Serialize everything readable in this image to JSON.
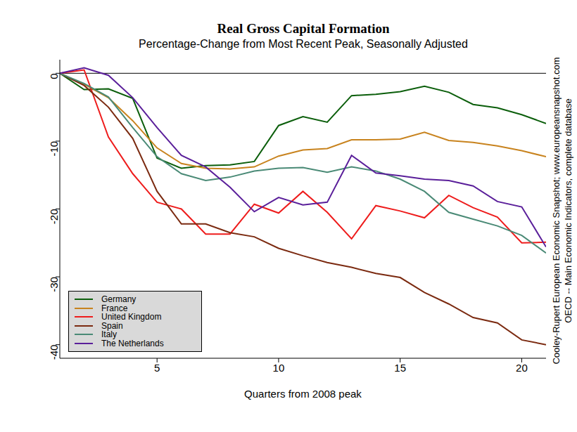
{
  "chart_data": {
    "type": "line",
    "title": "Real Gross Capital Formation",
    "subtitle": "Percentage-Change from Most Recent Peak, Seasonally Adjusted",
    "x_label": "Quarters from 2008 peak",
    "annotations": [
      "Cooley-Rupert European Economic Snapshot; www.europeansnapshot.com",
      "OECD -- Main Economic Indicators, complete database"
    ],
    "x": [
      1,
      2,
      3,
      4,
      5,
      6,
      7,
      8,
      9,
      10,
      11,
      12,
      13,
      14,
      15,
      16,
      17,
      18,
      19,
      20,
      21
    ],
    "series": [
      {
        "name": "Germany",
        "color": "#0b5e0b",
        "values": [
          0,
          -2.4,
          -2.3,
          -3.7,
          -12.5,
          -14,
          -13.6,
          -13.5,
          -13,
          -7.7,
          -6.4,
          -7.2,
          -3.3,
          -3.1,
          -2.7,
          -1.9,
          -2.8,
          -4.6,
          -5.1,
          -6.1,
          -7.4
        ]
      },
      {
        "name": "France",
        "color": "#c8831e",
        "values": [
          0,
          -1.6,
          -3.6,
          -7,
          -11,
          -13.3,
          -14,
          -14.1,
          -13.8,
          -12.2,
          -11.3,
          -11.1,
          -9.8,
          -9.8,
          -9.7,
          -8.7,
          -9.9,
          -10.2,
          -10.7,
          -11.4,
          -12.3
        ]
      },
      {
        "name": "United Kingdom",
        "color": "#ee1c1c",
        "values": [
          0,
          0.5,
          -9.4,
          -14.8,
          -19,
          -20,
          -23.7,
          -23.7,
          -19.3,
          -20.6,
          -17.4,
          -20.5,
          -24.4,
          -19.5,
          -20.3,
          -21.3,
          -18,
          -19.8,
          -21.2,
          -25,
          -24.9
        ]
      },
      {
        "name": "Spain",
        "color": "#7b2a10",
        "values": [
          0,
          -1.8,
          -5,
          -9.6,
          -17.4,
          -22.2,
          -22.2,
          -23.5,
          -24.1,
          -25.8,
          -26.9,
          -27.9,
          -28.6,
          -29.5,
          -30.1,
          -32.3,
          -34,
          -36,
          -36.8,
          -39.3,
          -40
        ]
      },
      {
        "name": "Italy",
        "color": "#4a8a76",
        "values": [
          0,
          -1.5,
          -3.5,
          -8,
          -12.3,
          -14.8,
          -15.8,
          -15.3,
          -14.4,
          -14,
          -13.9,
          -14.6,
          -13.8,
          -14.4,
          -15.6,
          -17.4,
          -20.5,
          -21.5,
          -22.5,
          -23.9,
          -26.5
        ]
      },
      {
        "name": "The Netherlands",
        "color": "#5a1f9a",
        "values": [
          0,
          0.8,
          -0.3,
          -3.6,
          -8,
          -12.1,
          -13.8,
          -16.8,
          -20.4,
          -18.3,
          -19.4,
          -19,
          -12.1,
          -14.7,
          -15.1,
          -15.6,
          -15.8,
          -16.6,
          -18.9,
          -19.7,
          -25.6
        ]
      }
    ],
    "xlim": [
      1,
      21
    ],
    "xticks": [
      5,
      10,
      15,
      20
    ],
    "ylim": [
      -42,
      2
    ],
    "yticks": [
      -40,
      -30,
      -20,
      -10,
      0
    ],
    "baseline": 0,
    "legend": "lower left",
    "grid": false
  }
}
